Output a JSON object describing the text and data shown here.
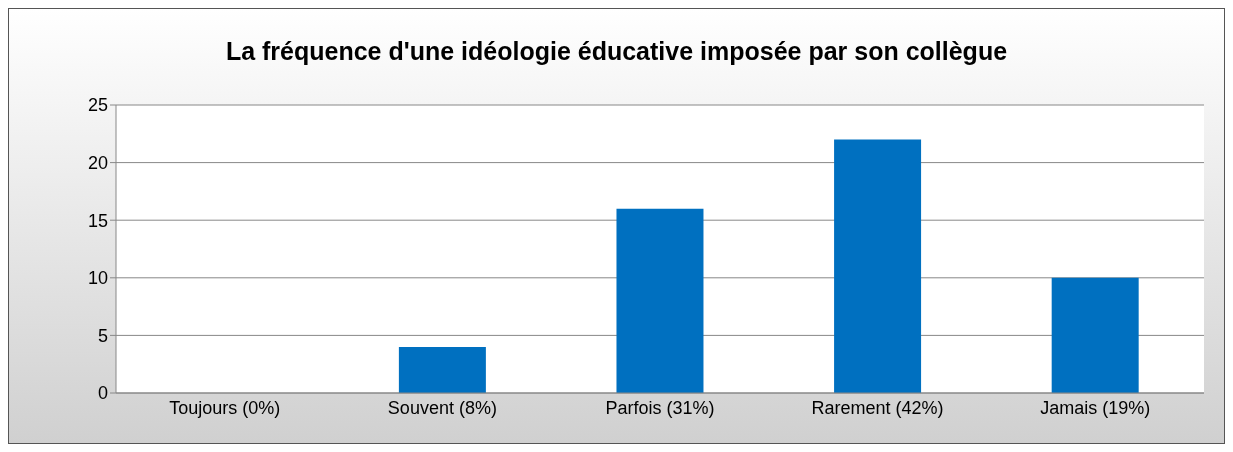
{
  "chart_data": {
    "type": "bar",
    "title": "La fréquence d'une idéologie éducative imposée par son collègue",
    "categories": [
      "Toujours (0%)",
      "Souvent (8%)",
      "Parfois (31%)",
      "Rarement (42%)",
      "Jamais (19%)"
    ],
    "values": [
      0,
      4,
      16,
      22,
      10
    ],
    "color": "#0070c0",
    "ylim": [
      0,
      25
    ],
    "yticks": [
      0,
      5,
      10,
      15,
      20,
      25
    ],
    "grid": "y"
  }
}
